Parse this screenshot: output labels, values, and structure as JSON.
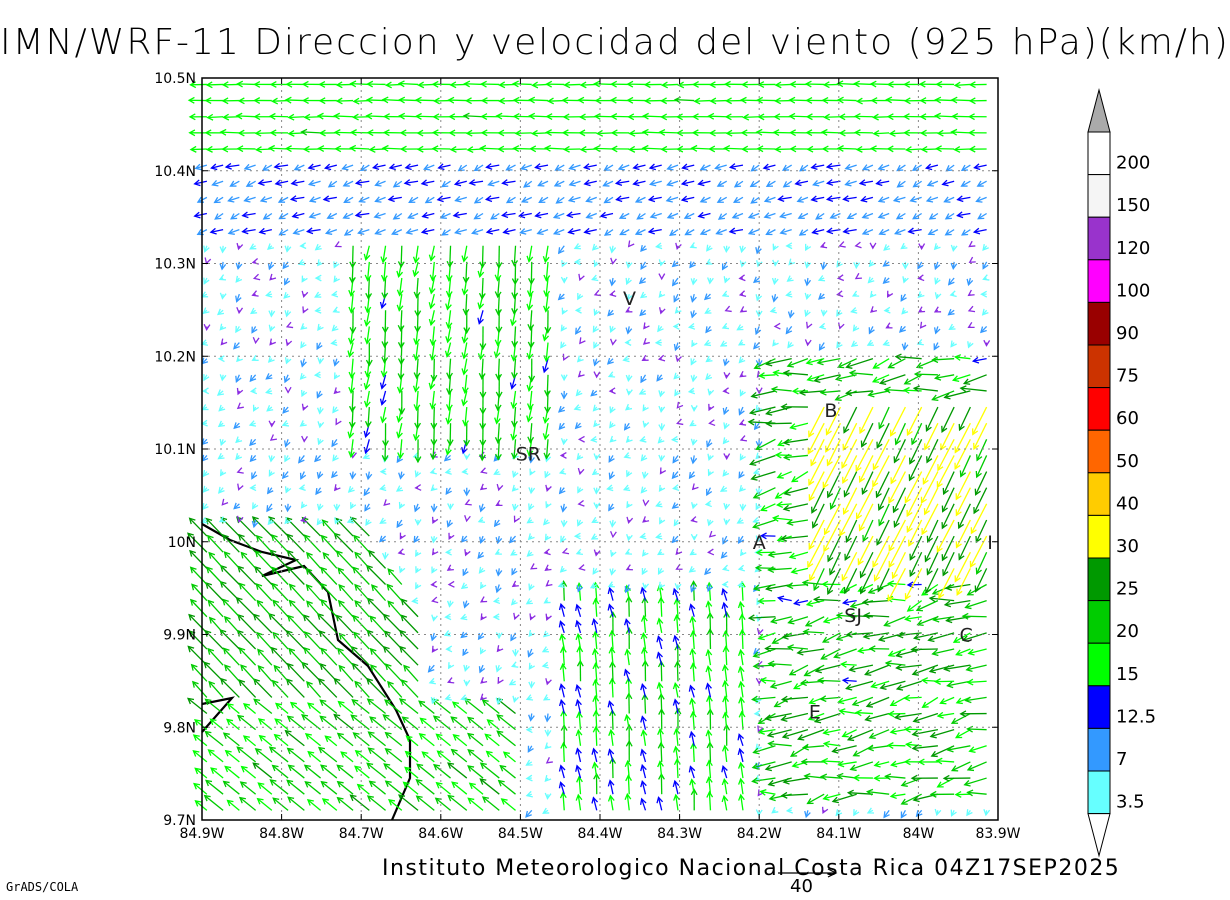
{
  "title": "IMN/WRF-11 Direccion y velocidad del viento (925 hPa)(km/h)",
  "footer": "Instituto Meteorologico Nacional Costa Rica 04Z17SEP2025",
  "credit": "GrADS/COLA",
  "reference_vector": {
    "label": "40"
  },
  "axes": {
    "x_ticks": [
      "84.9W",
      "84.8W",
      "84.7W",
      "84.6W",
      "84.5W",
      "84.4W",
      "84.3W",
      "84.2W",
      "84.1W",
      "84W",
      "83.9W"
    ],
    "y_ticks": [
      "10.5N",
      "10.4N",
      "10.3N",
      "10.2N",
      "10.1N",
      "10N",
      "9.9N",
      "9.8N",
      "9.7N"
    ]
  },
  "places": [
    {
      "label": "V",
      "lon": -84.363,
      "lat": 10.263
    },
    {
      "label": "SR",
      "lon": -84.49,
      "lat": 10.095
    },
    {
      "label": "B",
      "lon": -84.11,
      "lat": 10.142
    },
    {
      "label": "A",
      "lon": -84.2,
      "lat": 10.0
    },
    {
      "label": "SJ",
      "lon": -84.082,
      "lat": 9.921
    },
    {
      "label": "C",
      "lon": -83.94,
      "lat": 9.9
    },
    {
      "label": "E",
      "lon": -84.13,
      "lat": 9.817
    },
    {
      "label": "I",
      "lon": -83.91,
      "lat": 10.0
    }
  ],
  "colorbar": {
    "labels": [
      "3.5",
      "7",
      "12.5",
      "15",
      "20",
      "25",
      "30",
      "40",
      "50",
      "60",
      "75",
      "90",
      "100",
      "120",
      "150",
      "200"
    ],
    "colors": [
      "#66ffff",
      "#3399ff",
      "#0000ff",
      "#00ff00",
      "#00cc00",
      "#009900",
      "#ffff00",
      "#ffcc00",
      "#ff6600",
      "#ff0000",
      "#cc3300",
      "#990000",
      "#ff00ff",
      "#9933cc",
      "#f5f5f5",
      "#ffffff",
      "#aaaaaa"
    ]
  }
}
